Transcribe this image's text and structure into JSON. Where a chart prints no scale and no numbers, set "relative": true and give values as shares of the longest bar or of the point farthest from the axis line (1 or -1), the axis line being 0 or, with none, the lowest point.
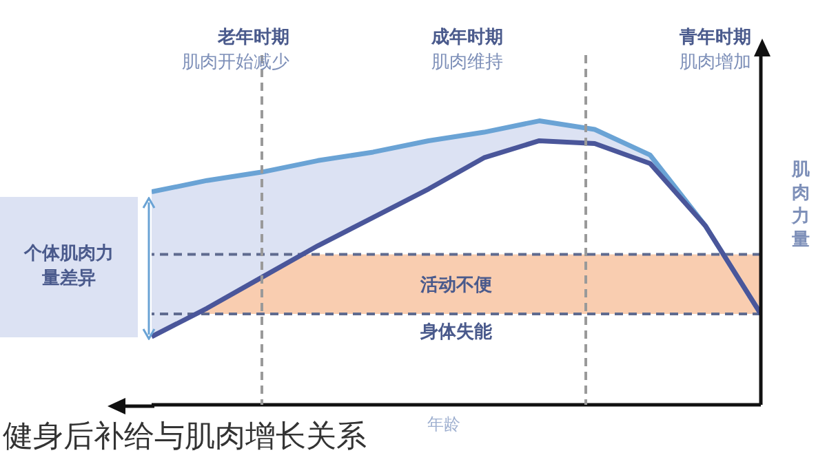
{
  "chart_data": {
    "type": "line",
    "title": "健身后补给与肌肉增长关系",
    "xlabel": "年龄",
    "ylabel": "肌肉力量",
    "relative": true,
    "grid": false,
    "legend": false,
    "marker": "none",
    "line_style": "solid",
    "categories": [
      null,
      null,
      null,
      null,
      null,
      null,
      null,
      null,
      null,
      null,
      null,
      null
    ],
    "series": [
      {
        "color": "#6aa3d5",
        "values": [
          0.75,
          0.79,
          0.82,
          0.86,
          0.89,
          0.93,
          0.96,
          1.0,
          0.97,
          0.88,
          0.63,
          0.32
        ],
        "lower": [
          0.24,
          0.34,
          0.45,
          0.56,
          0.66,
          0.76,
          0.87,
          0.93,
          0.92,
          0.85,
          0.63,
          0.32
        ],
        "upper": [
          0.75,
          0.79,
          0.82,
          0.86,
          0.89,
          0.93,
          0.96,
          1.0,
          0.97,
          0.88,
          0.63,
          0.32
        ]
      },
      {
        "color": "#4a569a",
        "values": [
          0.24,
          0.34,
          0.45,
          0.56,
          0.66,
          0.76,
          0.87,
          0.93,
          0.92,
          0.85,
          0.63,
          0.32
        ]
      }
    ],
    "bands": [
      {
        "axis": "y",
        "from": 0.32,
        "to": 0.53,
        "label": "活动不便",
        "color": "#f9cdb0"
      }
    ],
    "ref_lines": [
      {
        "axis": "y",
        "value": 0.53,
        "label": null,
        "line_style": "dashed",
        "color": "#5f6b8f"
      },
      {
        "axis": "y",
        "value": 0.32,
        "label": "身体失能",
        "line_style": "dashed",
        "color": "#5f6b8f"
      }
    ],
    "annotations": [
      "老年时期",
      "肌肉开始减少",
      "成年时期",
      "肌肉维持",
      "青年时期",
      "肌肉增加",
      "个体肌肉力量差异"
    ]
  }
}
